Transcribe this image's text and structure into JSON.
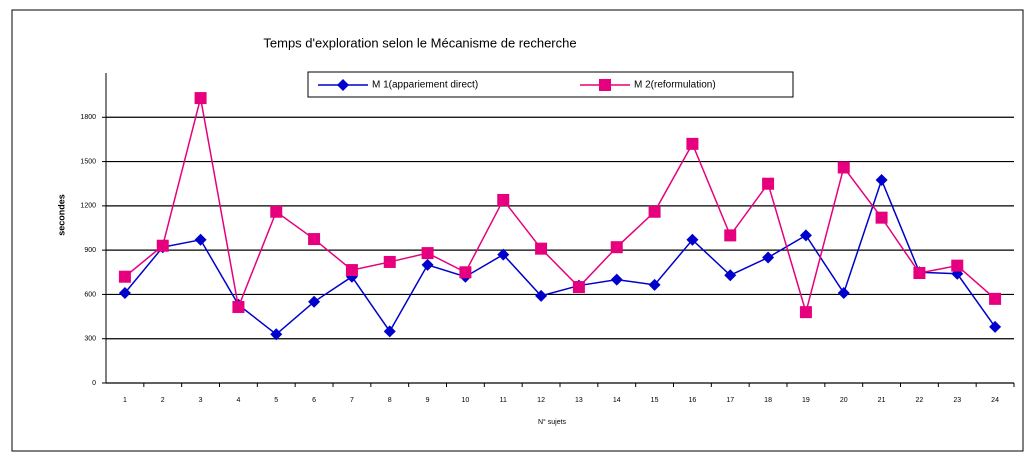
{
  "chart_data": {
    "type": "line",
    "title": "Temps d'exploration selon le Mécanisme de recherche",
    "x_label": "N° sujets",
    "y_label": "secondes",
    "categories": [
      "1",
      "2",
      "3",
      "4",
      "5",
      "6",
      "7",
      "8",
      "9",
      "10",
      "11",
      "12",
      "13",
      "14",
      "15",
      "16",
      "17",
      "18",
      "19",
      "20",
      "21",
      "22",
      "23",
      "24"
    ],
    "series": [
      {
        "name": "M 1(appariement direct)",
        "color": "#0000cc",
        "marker": "diamond",
        "values": [
          610,
          920,
          970,
          530,
          330,
          550,
          720,
          350,
          800,
          720,
          870,
          590,
          660,
          700,
          665,
          970,
          730,
          850,
          1000,
          610,
          1375,
          750,
          740,
          380
        ]
      },
      {
        "name": "M 2(reformulation)",
        "color": "#e6007e",
        "marker": "square",
        "values": [
          720,
          930,
          1930,
          515,
          1160,
          975,
          765,
          820,
          880,
          750,
          1240,
          910,
          650,
          920,
          1160,
          1620,
          1000,
          1350,
          480,
          1460,
          1120,
          745,
          795,
          570
        ]
      }
    ],
    "ylim": [
      0,
      2100
    ],
    "yticks": [
      0,
      300,
      600,
      900,
      1200,
      1500,
      1800
    ],
    "grid": true
  }
}
